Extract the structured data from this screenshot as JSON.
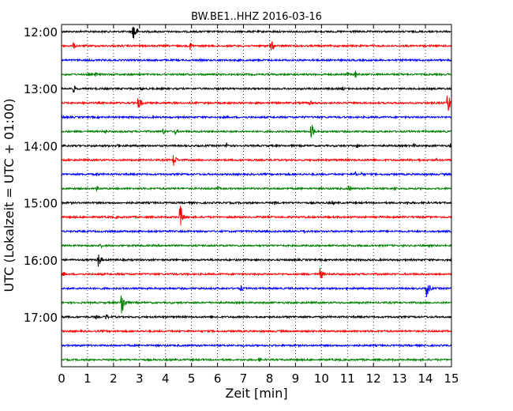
{
  "chart_data": {
    "type": "line",
    "title": "BW.BE1..HHZ 2016-03-16",
    "xlabel": "Zeit  [min]",
    "ylabel": "UTC (Lokalzeit = UTC + 01:00)",
    "xlim": [
      0,
      15
    ],
    "xticks": [
      "0",
      "1",
      "2",
      "3",
      "4",
      "5",
      "6",
      "7",
      "8",
      "9",
      "10",
      "11",
      "12",
      "13",
      "14",
      "15"
    ],
    "yticks": [
      {
        "label": "12:00",
        "trace": 0
      },
      {
        "label": "13:00",
        "trace": 4
      },
      {
        "label": "14:00",
        "trace": 8
      },
      {
        "label": "15:00",
        "trace": 12
      },
      {
        "label": "16:00",
        "trace": 16
      },
      {
        "label": "17:00",
        "trace": 20
      }
    ],
    "grid": "vertical dotted at every minute",
    "trace_interval_min": 15,
    "colors": [
      "#000000",
      "#ff0000",
      "#0000ff",
      "#008000"
    ],
    "traces": [
      {
        "start": "12:00",
        "events": [
          {
            "t": 2.75,
            "amp": 1.5
          }
        ]
      },
      {
        "start": "12:15",
        "events": [
          {
            "t": 0.45,
            "amp": 0.4
          },
          {
            "t": 4.95,
            "amp": 0.5
          },
          {
            "t": 8.05,
            "amp": 0.7
          },
          {
            "t": 8.1,
            "amp": 0.5
          }
        ]
      },
      {
        "start": "12:30",
        "events": []
      },
      {
        "start": "12:45",
        "events": [
          {
            "t": 1.3,
            "amp": 0.3
          },
          {
            "t": 11.3,
            "amp": 0.5
          },
          {
            "t": 11.0,
            "amp": 0.3
          }
        ]
      },
      {
        "start": "13:00",
        "events": [
          {
            "t": 0.45,
            "amp": 0.5
          },
          {
            "t": 3.05,
            "amp": 0.3
          },
          {
            "t": 10.8,
            "amp": 0.3
          }
        ]
      },
      {
        "start": "13:15",
        "events": [
          {
            "t": 2.95,
            "amp": 1.0
          },
          {
            "t": 9.55,
            "amp": 0.4
          },
          {
            "t": 14.85,
            "amp": 1.5
          }
        ]
      },
      {
        "start": "13:30",
        "events": [
          {
            "t": 0.0,
            "amp": 0.3
          }
        ]
      },
      {
        "start": "13:45",
        "events": [
          {
            "t": 1.65,
            "amp": 0.3
          },
          {
            "t": 3.9,
            "amp": 0.4
          },
          {
            "t": 4.35,
            "amp": 0.4
          },
          {
            "t": 9.6,
            "amp": 1.1
          }
        ]
      },
      {
        "start": "14:00",
        "events": [
          {
            "t": 2.15,
            "amp": 0.3
          },
          {
            "t": 6.35,
            "amp": 0.5
          },
          {
            "t": 11.35,
            "amp": 0.3
          },
          {
            "t": 13.55,
            "amp": 0.3
          },
          {
            "t": 14.95,
            "amp": 0.3
          }
        ]
      },
      {
        "start": "14:15",
        "events": [
          {
            "t": 4.3,
            "amp": 0.9
          },
          {
            "t": 13.7,
            "amp": 0.3
          },
          {
            "t": 14.4,
            "amp": 0.2
          }
        ]
      },
      {
        "start": "14:30",
        "events": [
          {
            "t": 1.35,
            "amp": 0.3
          },
          {
            "t": 11.3,
            "amp": 0.3
          },
          {
            "t": 11.55,
            "amp": 0.3
          }
        ]
      },
      {
        "start": "14:45",
        "events": [
          {
            "t": 1.35,
            "amp": 0.3
          },
          {
            "t": 6.0,
            "amp": 0.3
          },
          {
            "t": 11.05,
            "amp": 0.4
          },
          {
            "t": 12.8,
            "amp": 0.3
          }
        ]
      },
      {
        "start": "15:00",
        "events": [
          {
            "t": 8.2,
            "amp": 0.3
          },
          {
            "t": 10.4,
            "amp": 0.3
          },
          {
            "t": 13.3,
            "amp": 0.3
          }
        ]
      },
      {
        "start": "15:15",
        "events": [
          {
            "t": 4.55,
            "amp": 1.6
          },
          {
            "t": 2.1,
            "amp": 0.2
          }
        ]
      },
      {
        "start": "15:30",
        "events": [
          {
            "t": 9.3,
            "amp": 0.3
          }
        ]
      },
      {
        "start": "15:45",
        "events": [
          {
            "t": 1.5,
            "amp": 0.3
          },
          {
            "t": 9.9,
            "amp": 0.2
          }
        ]
      },
      {
        "start": "16:00",
        "events": [
          {
            "t": 1.4,
            "amp": 1.0
          }
        ]
      },
      {
        "start": "16:15",
        "events": [
          {
            "t": 0.05,
            "amp": 0.4
          },
          {
            "t": 9.95,
            "amp": 0.8
          }
        ]
      },
      {
        "start": "16:30",
        "events": [
          {
            "t": 6.9,
            "amp": 0.4
          },
          {
            "t": 14.05,
            "amp": 1.1
          }
        ]
      },
      {
        "start": "16:45",
        "events": [
          {
            "t": 2.3,
            "amp": 1.8
          }
        ]
      },
      {
        "start": "17:00",
        "events": [
          {
            "t": 1.7,
            "amp": 0.4
          },
          {
            "t": 1.3,
            "amp": 0.3
          }
        ]
      },
      {
        "start": "17:15",
        "events": []
      },
      {
        "start": "17:30",
        "events": []
      },
      {
        "start": "17:45",
        "events": [
          {
            "t": 7.6,
            "amp": 0.3
          }
        ]
      }
    ]
  }
}
